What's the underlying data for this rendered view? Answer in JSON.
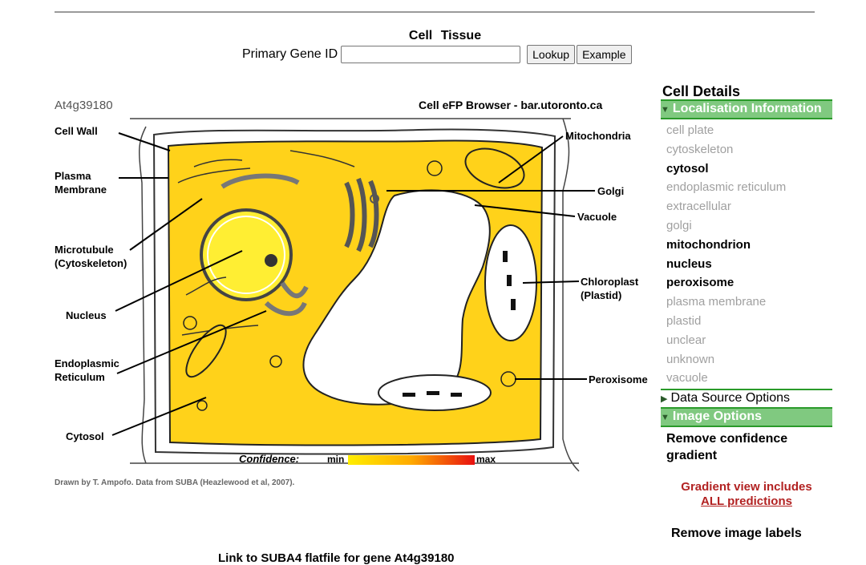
{
  "header": {
    "tabs": [
      "Cell",
      "Tissue"
    ]
  },
  "lookup": {
    "label": "Primary Gene ID",
    "value": "",
    "lookup_button": "Lookup",
    "example_button": "Example"
  },
  "figure": {
    "gene_id": "At4g39180",
    "browser_title": "Cell eFP Browser - bar.utoronto.ca",
    "labels": {
      "cell_wall": "Cell Wall",
      "plasma_membrane_1": "Plasma",
      "plasma_membrane_2": "Membrane",
      "microtubule_1": "Microtubule",
      "microtubule_2": "(Cytoskeleton)",
      "nucleus": "Nucleus",
      "er_1": "Endoplasmic",
      "er_2": "Reticulum",
      "cytosol": "Cytosol",
      "mitochondria": "Mitochondria",
      "golgi": "Golgi",
      "vacuole": "Vacuole",
      "chloroplast_1": "Chloroplast",
      "chloroplast_2": "(Plastid)",
      "peroxisome": "Peroxisome"
    },
    "legend": {
      "title": "Confidence:",
      "min": "min",
      "max": "max"
    },
    "credit": "Drawn by T. Ampofo. Data from SUBA (Heazlewood et al, 2007).",
    "colors": {
      "cytosol_fill": "#ffd21a",
      "nucleus_fill": "#ffee33",
      "gradient_start": "#ffee00",
      "gradient_end": "#e81010"
    }
  },
  "panel": {
    "title": "Cell Details",
    "localisation_header": "Localisation Information",
    "localisations": [
      {
        "name": "cell plate",
        "active": false
      },
      {
        "name": "cytoskeleton",
        "active": false
      },
      {
        "name": "cytosol",
        "active": true
      },
      {
        "name": "endoplasmic reticulum",
        "active": false
      },
      {
        "name": "extracellular",
        "active": false
      },
      {
        "name": "golgi",
        "active": false
      },
      {
        "name": "mitochondrion",
        "active": true
      },
      {
        "name": "nucleus",
        "active": true
      },
      {
        "name": "peroxisome",
        "active": true
      },
      {
        "name": "plasma membrane",
        "active": false
      },
      {
        "name": "plastid",
        "active": false
      },
      {
        "name": "unclear",
        "active": false
      },
      {
        "name": "unknown",
        "active": false
      },
      {
        "name": "vacuole",
        "active": false
      }
    ],
    "data_source_header": "Data Source Options",
    "image_options_header": "Image Options",
    "remove_gradient": "Remove confidence gradient",
    "gradient_note_1": "Gradient view includes",
    "gradient_note_2": "ALL predictions",
    "remove_labels": "Remove image labels",
    "accent_green": "#80c980",
    "note_red": "#b22222"
  },
  "footer": {
    "link_text": "Link to SUBA4 flatfile for gene At4g39180"
  }
}
